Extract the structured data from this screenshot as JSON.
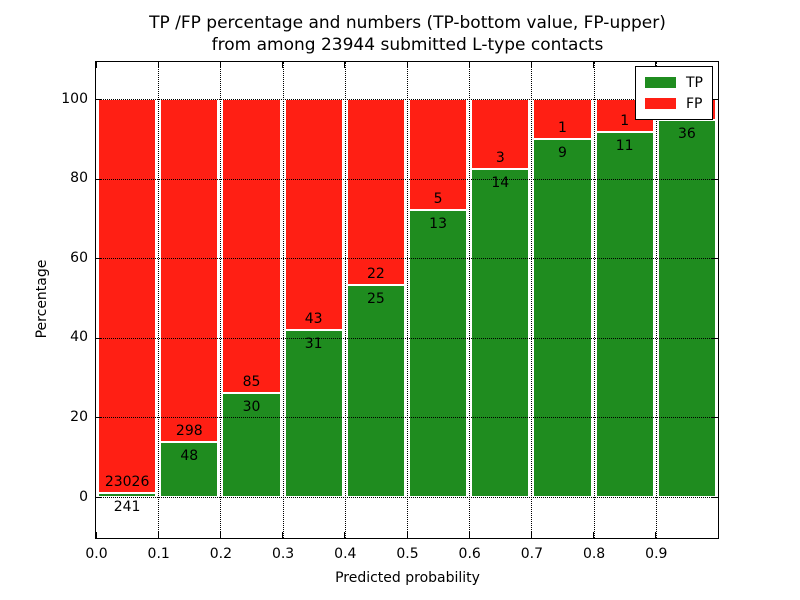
{
  "title": {
    "line1": "TP /FP percentage and numbers (TP-bottom value, FP-upper)",
    "line2": "from among 23944 submitted L-type contacts"
  },
  "axes": {
    "xlabel": "Predicted probability",
    "ylabel": "Percentage",
    "x_ticks": [
      "0.0",
      "0.1",
      "0.2",
      "0.3",
      "0.4",
      "0.5",
      "0.6",
      "0.7",
      "0.8",
      "0.9"
    ],
    "y_ticks": [
      "0",
      "20",
      "40",
      "60",
      "80",
      "100"
    ]
  },
  "legend": {
    "items": [
      {
        "label": "TP",
        "color": "#1f8c1f"
      },
      {
        "label": "FP",
        "color": "#ff1f14"
      }
    ]
  },
  "colors": {
    "tp_green": "#1f8c1f",
    "fp_red": "#ff1f14",
    "bar_edge": "#ffffff",
    "grid": "#000000"
  },
  "chart_data": {
    "type": "bar",
    "stacked": true,
    "normalized_to_100_percent": true,
    "title": "TP /FP percentage and numbers (TP-bottom value, FP-upper) from among 23944 submitted L-type contacts",
    "xlabel": "Predicted probability",
    "ylabel": "Percentage",
    "xlim": [
      0.0,
      1.0
    ],
    "ylim": [
      -11,
      109
    ],
    "grid": "dotted",
    "legend_position": "upper right",
    "bin_width": 0.1,
    "total_submitted": 23944,
    "series": [
      {
        "name": "TP",
        "color": "#1f8c1f"
      },
      {
        "name": "FP",
        "color": "#ff1f14"
      }
    ],
    "bars": [
      {
        "x_start": 0.0,
        "tp": 241,
        "fp": 23026,
        "tp_pct": 1.04,
        "tp_label": "241",
        "fp_label": "23026"
      },
      {
        "x_start": 0.1,
        "tp": 48,
        "fp": 298,
        "tp_pct": 13.87,
        "tp_label": "48",
        "fp_label": "298"
      },
      {
        "x_start": 0.2,
        "tp": 30,
        "fp": 85,
        "tp_pct": 26.09,
        "tp_label": "30",
        "fp_label": "85"
      },
      {
        "x_start": 0.3,
        "tp": 31,
        "fp": 43,
        "tp_pct": 41.89,
        "tp_label": "31",
        "fp_label": "43"
      },
      {
        "x_start": 0.4,
        "tp": 25,
        "fp": 22,
        "tp_pct": 53.19,
        "tp_label": "25",
        "fp_label": "22"
      },
      {
        "x_start": 0.5,
        "tp": 13,
        "fp": 5,
        "tp_pct": 72.22,
        "tp_label": "13",
        "fp_label": "5"
      },
      {
        "x_start": 0.6,
        "tp": 14,
        "fp": 3,
        "tp_pct": 82.35,
        "tp_label": "14",
        "fp_label": "3"
      },
      {
        "x_start": 0.7,
        "tp": 9,
        "fp": 1,
        "tp_pct": 90.0,
        "tp_label": "9",
        "fp_label": "1"
      },
      {
        "x_start": 0.8,
        "tp": 11,
        "fp": 1,
        "tp_pct": 91.67,
        "tp_label": "11",
        "fp_label": "1"
      },
      {
        "x_start": 0.9,
        "tp": 36,
        "fp": 2,
        "tp_pct": 94.74,
        "tp_label": "36",
        "fp_label": ""
      }
    ]
  }
}
